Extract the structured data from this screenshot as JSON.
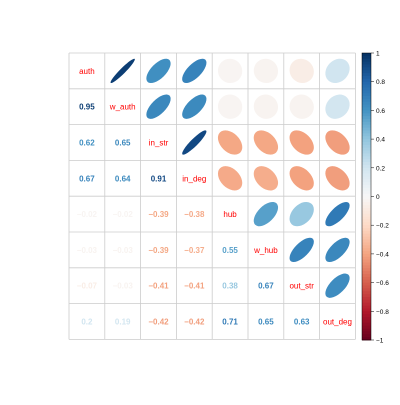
{
  "chart_data": {
    "type": "heatmap",
    "variables": [
      "auth",
      "w_auth",
      "in_str",
      "in_deg",
      "hub",
      "w_hub",
      "out_str",
      "out_deg"
    ],
    "correlations": [
      [
        1.0,
        0.95,
        0.62,
        0.67,
        -0.02,
        -0.03,
        -0.07,
        0.2
      ],
      [
        0.95,
        1.0,
        0.65,
        0.64,
        -0.02,
        -0.03,
        -0.03,
        0.19
      ],
      [
        0.62,
        0.65,
        1.0,
        0.91,
        -0.39,
        -0.39,
        -0.41,
        -0.42
      ],
      [
        0.67,
        0.64,
        0.91,
        1.0,
        -0.38,
        -0.37,
        -0.41,
        -0.42
      ],
      [
        -0.02,
        -0.02,
        -0.39,
        -0.38,
        1.0,
        0.55,
        0.38,
        0.71
      ],
      [
        -0.03,
        -0.03,
        -0.39,
        -0.37,
        0.55,
        1.0,
        0.67,
        0.65
      ],
      [
        -0.07,
        -0.03,
        -0.41,
        -0.41,
        0.38,
        0.67,
        1.0,
        0.63
      ],
      [
        0.2,
        0.19,
        -0.42,
        -0.42,
        0.71,
        0.65,
        0.63,
        1.0
      ]
    ],
    "lower_triangle": "numbers",
    "upper_triangle": "ellipses",
    "diagonal": "variable names",
    "colorbar": {
      "range": [
        -1,
        1
      ],
      "ticks": [
        "1",
        "0.8",
        "0.6",
        "0.4",
        "0.2",
        "0",
        "−0.2",
        "−0.4",
        "−0.6",
        "−0.8",
        "−1"
      ],
      "placement": "right"
    },
    "colors": {
      "negative_end": "#67001F",
      "positive_end": "#053061",
      "label_color": "#ff0000",
      "grid_color": "#cccccc"
    }
  }
}
